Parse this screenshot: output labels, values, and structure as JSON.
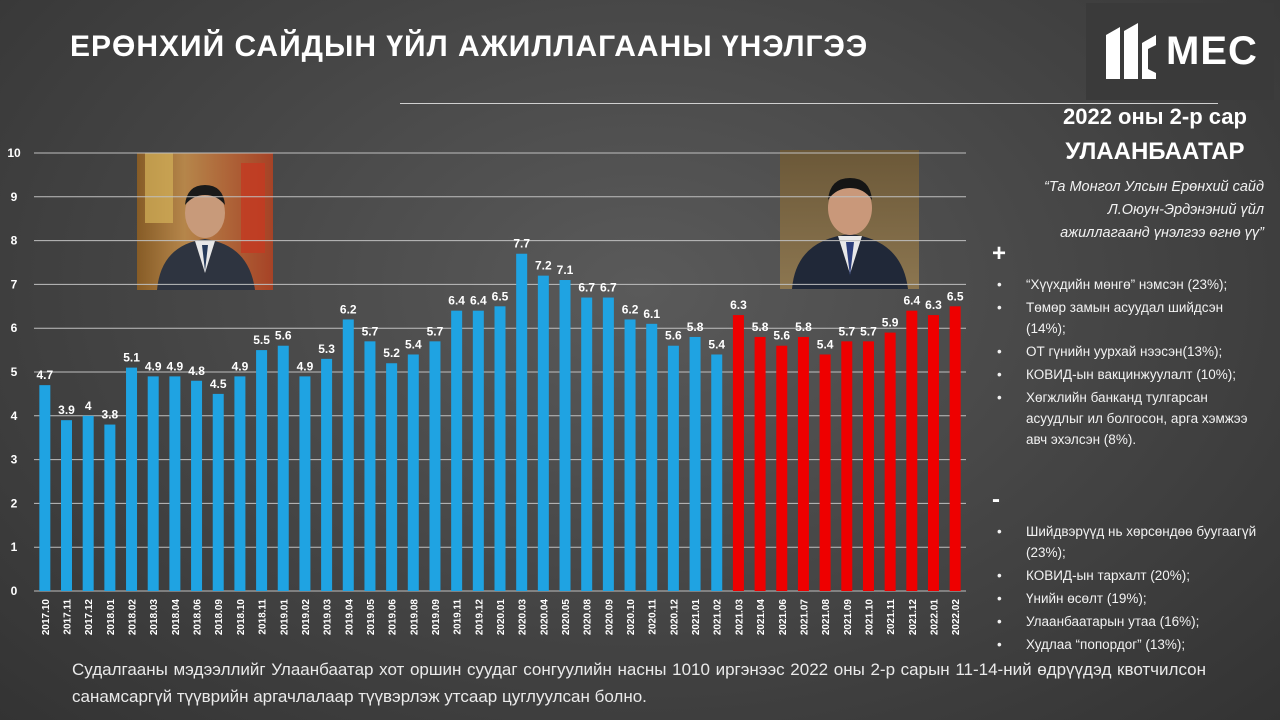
{
  "header": {
    "title": "ЕРӨНХИЙ САЙДЫН ҮЙЛ АЖИЛЛАГААНЫ ҮНЭЛГЭЭ",
    "logo_text": "MEC"
  },
  "sidebar": {
    "date": "2022 оны 2-р сар",
    "city": "УЛААНБААТАР",
    "quote": "“Та Монгол Улсын Ерөнхий сайд Л.Оюун-Эрдэнэний үйл ажиллагаанд үнэлгээ өгнө үү”",
    "plus_symbol": "+",
    "plus_items": [
      "“Хүүхдийн мөнгө” нэмсэн (23%);",
      "Төмөр замын асуудал шийдсэн (14%);",
      "ОТ гүнийн уурхай нээсэн(13%);",
      "КОВИД-ын вакцинжуулалт (10%);",
      "Хөгжлийн банканд тулгарсан асуудлыг ил болгосон, арга хэмжээ авч эхэлсэн (8%)."
    ],
    "minus_symbol": "-",
    "minus_items": [
      "Шийдвэрүүд нь хөрсөндөө буугаагүй (23%);",
      "КОВИД-ын тархалт (20%);",
      "Үнийн өсөлт (19%);",
      "Улаанбаатарын утаа (16%);",
      "Худлаа “попордог” (13%);"
    ],
    "bullet": "•"
  },
  "footnote": "Судалгааны мэдээллийг Улаанбаатар хот оршин суудаг сонгуулийн насны 1010 иргэнээс 2022 оны 2-р сарын 11-14-ний өдрүүдэд квотчилсон санамсаргүй түүврийн аргачлалаар түүвэрлэж утсаар цуглуулсан болно.",
  "colors": {
    "previous_pm": "#1fa3e2",
    "current_pm": "#ee0000",
    "grid": "#bfbfbf",
    "background": "#4a4a4a"
  },
  "chart_data": {
    "type": "bar",
    "ylim": [
      0,
      10
    ],
    "yticks": [
      0,
      1,
      2,
      3,
      4,
      5,
      6,
      7,
      8,
      9,
      10
    ],
    "grid": true,
    "categories": [
      "2017.10",
      "2017.11",
      "2017.12",
      "2018.01",
      "2018.02",
      "2018.03",
      "2018.04",
      "2018.06",
      "2018.09",
      "2018.10",
      "2018.11",
      "2019.01",
      "2019.02",
      "2019.03",
      "2019.04",
      "2019.05",
      "2019.06",
      "2019.08",
      "2019.09",
      "2019.11",
      "2019.12",
      "2020.01",
      "2020.03",
      "2020.04",
      "2020.05",
      "2020.08",
      "2020.09",
      "2020.10",
      "2020.11",
      "2020.12",
      "2021.01",
      "2021.02",
      "2021.03",
      "2021.04",
      "2021.06",
      "2021.07",
      "2021.08",
      "2021.09",
      "2021.10",
      "2021.11",
      "2021.12",
      "2022.01",
      "2022.02"
    ],
    "values": [
      4.7,
      3.9,
      4,
      3.8,
      5.1,
      4.9,
      4.9,
      4.8,
      4.5,
      4.9,
      5.5,
      5.6,
      4.9,
      5.3,
      6.2,
      5.7,
      5.2,
      5.4,
      5.7,
      6.4,
      6.4,
      6.5,
      7.7,
      7.2,
      7.1,
      6.7,
      6.7,
      6.2,
      6.1,
      5.6,
      5.8,
      5.4,
      6.3,
      5.8,
      5.6,
      5.8,
      5.4,
      5.7,
      5.7,
      5.9,
      6.4,
      6.3,
      6.5
    ],
    "highlight_from_index": 32
  }
}
